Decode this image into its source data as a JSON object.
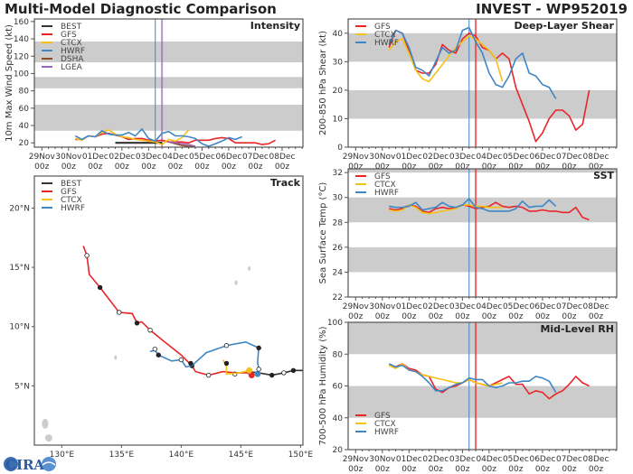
{
  "header": {
    "title_left": "Multi-Model Diagnostic Comparison",
    "title_right": "INVEST - WP952019"
  },
  "logo": {
    "text": "CIRA"
  },
  "colors": {
    "BEST": "#333333",
    "GFS": "#e8262a",
    "CTCX": "#f5c018",
    "HWRF": "#3f86c4",
    "DSHA": "#8c4a2a",
    "LGEA": "#a064b4",
    "band": "#cccccc"
  },
  "valid_times": [
    "30Nov 06z",
    "30Nov 12z",
    "30Nov 18z",
    "01Dec 00z",
    "01Dec 06z",
    "01Dec 12z",
    "01Dec 18z",
    "02Dec 00z",
    "02Dec 06z",
    "02Dec 12z",
    "02Dec 18z",
    "03Dec 00z",
    "03Dec 06z",
    "03Dec 12z",
    "03Dec 18z",
    "04Dec 00z",
    "04Dec 06z",
    "04Dec 12z",
    "04Dec 18z",
    "05Dec 00z",
    "05Dec 06z",
    "05Dec 12z",
    "05Dec 18z",
    "06Dec 00z",
    "06Dec 06z",
    "06Dec 12z",
    "06Dec 18z",
    "07Dec 00z",
    "07Dec 06z",
    "07Dec 12z",
    "07Dec 18z"
  ],
  "x_ticks": [
    [
      "29Nov",
      "00z"
    ],
    [
      "30Nov",
      "00z"
    ],
    [
      "01Dec",
      "00z"
    ],
    [
      "02Dec",
      "00z"
    ],
    [
      "03Dec",
      "00z"
    ],
    [
      "04Dec",
      "00z"
    ],
    [
      "05Dec",
      "00z"
    ],
    [
      "06Dec",
      "00z"
    ],
    [
      "07Dec",
      "00z"
    ],
    [
      "08Dec",
      "00z"
    ]
  ],
  "chart_data": [
    {
      "type": "line",
      "id": "intensity",
      "title": "Intensity",
      "ylabel": "10m Max Wind Speed (kt)",
      "ylim": [
        15,
        163
      ],
      "yticks": [
        20,
        40,
        60,
        80,
        100,
        120,
        140,
        160
      ],
      "grid": false,
      "bands": [
        [
          34,
          64
        ],
        [
          83,
          96
        ],
        [
          113,
          137
        ]
      ],
      "vlines": [
        {
          "time": "03Dec 06z",
          "color": "HWRF"
        },
        {
          "time": "03Dec 12z",
          "color": "LGEA"
        }
      ],
      "legend": [
        "BEST",
        "GFS",
        "CTCX",
        "HWRF",
        "DSHA",
        "LGEA"
      ],
      "legend_placement": "top-left",
      "series": [
        {
          "name": "BEST",
          "values": [
            null,
            null,
            null,
            null,
            null,
            null,
            20,
            20,
            20,
            20,
            20,
            20,
            20,
            20
          ]
        },
        {
          "name": "GFS",
          "values": [
            24,
            24,
            28,
            27,
            30,
            31,
            29,
            27,
            24,
            25,
            25,
            23,
            22,
            23,
            21,
            21,
            21,
            20,
            23,
            23,
            23,
            25,
            26,
            25,
            20,
            20,
            20,
            20,
            18,
            19,
            23
          ]
        },
        {
          "name": "CTCX",
          "values": [
            25,
            23,
            28,
            27,
            32,
            35,
            30,
            27,
            26,
            24,
            23,
            22,
            21,
            18,
            24,
            22,
            26,
            35
          ]
        },
        {
          "name": "HWRF",
          "values": [
            28,
            24,
            28,
            27,
            34,
            30,
            29,
            29,
            32,
            28,
            36,
            25,
            22,
            31,
            33,
            28,
            28,
            27,
            25,
            19,
            16,
            19,
            22,
            26,
            24,
            27
          ]
        },
        {
          "name": "DSHA",
          "values": [
            null,
            null,
            null,
            null,
            null,
            null,
            null,
            null,
            null,
            null,
            null,
            null,
            null,
            null,
            21,
            19,
            17,
            16,
            16
          ]
        },
        {
          "name": "LGEA",
          "values": [
            null,
            null,
            null,
            null,
            null,
            null,
            null,
            null,
            null,
            null,
            null,
            null,
            null,
            null,
            21,
            20,
            19,
            18,
            16
          ]
        }
      ]
    },
    {
      "type": "line",
      "id": "shear",
      "title": "Deep-Layer Shear",
      "ylabel": "200-850 hPa Shear (kt)",
      "ylim": [
        0,
        45
      ],
      "yticks": [
        0,
        10,
        20,
        30,
        40
      ],
      "grid": false,
      "bands": [
        [
          10,
          20
        ],
        [
          30,
          40
        ]
      ],
      "vlines": [
        {
          "time": "03Dec 06z",
          "color": "HWRF"
        },
        {
          "time": "03Dec 12z",
          "color": "GFS"
        }
      ],
      "legend": [
        "GFS",
        "CTCX",
        "HWRF"
      ],
      "legend_placement": "top-left",
      "series": [
        {
          "name": "GFS",
          "values": [
            35,
            41,
            40,
            34,
            27,
            26,
            26,
            29,
            36,
            34,
            33,
            38,
            40,
            39,
            35,
            34,
            31,
            33,
            31,
            21,
            15,
            9,
            2,
            5,
            10,
            13,
            13,
            11,
            6,
            8,
            20
          ]
        },
        {
          "name": "CTCX",
          "values": [
            34,
            37,
            38,
            33,
            27,
            24,
            23,
            26,
            29,
            32,
            35,
            37,
            39,
            38,
            36,
            34,
            31,
            23
          ]
        },
        {
          "name": "HWRF",
          "values": [
            36,
            41,
            40,
            35,
            28,
            27,
            25,
            30,
            35,
            33,
            34,
            41,
            42,
            37,
            33,
            26,
            22,
            21,
            25,
            31,
            33,
            26,
            25,
            22,
            21,
            17
          ]
        }
      ]
    },
    {
      "type": "line",
      "id": "sst",
      "title": "SST",
      "ylabel": "Sea Surface Temp (°C)",
      "ylim": [
        22,
        32.3
      ],
      "yticks": [
        22,
        24,
        26,
        28,
        30,
        32
      ],
      "grid": false,
      "bands": [
        [
          24,
          26
        ],
        [
          28,
          30
        ],
        [
          32,
          34
        ]
      ],
      "vlines": [
        {
          "time": "03Dec 06z",
          "color": "HWRF"
        },
        {
          "time": "03Dec 12z",
          "color": "GFS"
        }
      ],
      "legend": [
        "GFS",
        "CTCX",
        "HWRF"
      ],
      "legend_placement": "top-left",
      "series": [
        {
          "name": "GFS",
          "values": [
            29.1,
            29.0,
            29.1,
            29.4,
            29.3,
            28.9,
            28.8,
            29.1,
            29.2,
            29.1,
            29.2,
            29.4,
            29.3,
            29.1,
            29.2,
            29.3,
            29.6,
            29.3,
            29.2,
            29.3,
            29.2,
            28.9,
            28.9,
            29.0,
            28.9,
            28.9,
            28.8,
            28.8,
            29.2,
            28.4,
            28.2
          ]
        },
        {
          "name": "CTCX",
          "values": [
            29.0,
            28.9,
            29.0,
            29.4,
            29.2,
            28.8,
            28.7,
            28.8,
            28.9,
            29.0,
            29.1,
            29.4,
            29.4,
            29.3,
            29.3,
            29.2,
            29.2,
            29.2
          ]
        },
        {
          "name": "HWRF",
          "values": [
            29.3,
            29.2,
            29.2,
            29.3,
            29.6,
            29.0,
            29.1,
            29.2,
            29.6,
            29.3,
            29.2,
            29.4,
            29.9,
            29.2,
            29.1,
            28.9,
            28.9,
            28.9,
            28.9,
            29.1,
            29.7,
            29.2,
            29.3,
            29.3,
            29.8,
            29.3
          ]
        }
      ]
    },
    {
      "type": "line",
      "id": "rh",
      "title": "Mid-Level RH",
      "ylabel": "700-500 hPa Humidity (%)",
      "ylim": [
        20,
        100
      ],
      "yticks": [
        20,
        40,
        60,
        80,
        100
      ],
      "grid": false,
      "bands": [
        [
          40,
          60
        ],
        [
          80,
          100
        ]
      ],
      "vlines": [
        {
          "time": "03Dec 06z",
          "color": "HWRF"
        },
        {
          "time": "03Dec 12z",
          "color": "GFS"
        }
      ],
      "legend": [
        "GFS",
        "CTCX",
        "HWRF"
      ],
      "legend_placement": "bottom-left",
      "series": [
        {
          "name": "GFS",
          "values": [
            73,
            72,
            74,
            71,
            70,
            67,
            66,
            58,
            56,
            59,
            60,
            62,
            64,
            62,
            61,
            60,
            62,
            64,
            66,
            61,
            61,
            55,
            57,
            56,
            52,
            55,
            57,
            61,
            66,
            62,
            60
          ]
        },
        {
          "name": "CTCX",
          "values": [
            73,
            71,
            74,
            70,
            69,
            67,
            66,
            65,
            64,
            63,
            62,
            62,
            64,
            62,
            61,
            60,
            61,
            62
          ]
        },
        {
          "name": "HWRF",
          "values": [
            74,
            72,
            73,
            70,
            69,
            66,
            62,
            57,
            57,
            59,
            61,
            62,
            65,
            64,
            64,
            60,
            59,
            60,
            62,
            62,
            63,
            63,
            66,
            65,
            63,
            56
          ]
        }
      ]
    },
    {
      "type": "line",
      "id": "track",
      "title": "Track",
      "xlim": [
        127.7,
        150.2
      ],
      "ylim": [
        0,
        22.7
      ],
      "xticks": [
        [
          130,
          "130°E"
        ],
        [
          135,
          "135°E"
        ],
        [
          140,
          "140°E"
        ],
        [
          145,
          "145°E"
        ],
        [
          150,
          "150°E"
        ]
      ],
      "yticks": [
        [
          5,
          "5°N"
        ],
        [
          10,
          "10°N"
        ],
        [
          15,
          "15°N"
        ],
        [
          20,
          "20°N"
        ]
      ],
      "legend": [
        "BEST",
        "GFS",
        "CTCX",
        "HWRF"
      ],
      "legend_placement": "top-left",
      "series": [
        {
          "name": "BEST",
          "lonlat": [
            [
              150.3,
              6.3
            ],
            [
              149.4,
              6.3
            ],
            [
              148.6,
              6.1
            ],
            [
              147.6,
              5.9
            ],
            [
              146.5,
              6.1
            ],
            [
              145.5,
              6.2
            ]
          ],
          "markers": [
            [
              149.4,
              6.3,
              "filled"
            ],
            [
              148.6,
              6.1,
              "open"
            ],
            [
              147.6,
              5.9,
              "filled"
            ]
          ]
        },
        {
          "name": "GFS",
          "lonlat": [
            [
              145.9,
              5.9
            ],
            [
              145.5,
              6.1
            ],
            [
              144.5,
              6.1
            ],
            [
              143.5,
              6.2
            ],
            [
              142.3,
              5.9
            ],
            [
              141.2,
              6.2
            ],
            [
              140.9,
              6.7
            ],
            [
              140.0,
              7.6
            ],
            [
              138.5,
              8.8
            ],
            [
              137.4,
              9.7
            ],
            [
              136.7,
              10.4
            ],
            [
              136.3,
              10.3
            ],
            [
              135.9,
              11.1
            ],
            [
              134.8,
              11.2
            ],
            [
              133.2,
              13.3
            ],
            [
              132.3,
              14.4
            ],
            [
              132.1,
              16.0
            ],
            [
              131.8,
              16.8
            ]
          ],
          "markers": [
            [
              145.9,
              5.9,
              "start"
            ],
            [
              144.5,
              6.0,
              "open"
            ],
            [
              142.3,
              5.9,
              "open"
            ],
            [
              140.9,
              6.7,
              "filled"
            ],
            [
              137.4,
              9.7,
              "open"
            ],
            [
              136.3,
              10.3,
              "filled"
            ],
            [
              134.8,
              11.2,
              "open"
            ],
            [
              133.2,
              13.3,
              "filled"
            ],
            [
              132.1,
              16.0,
              "open"
            ]
          ]
        },
        {
          "name": "CTCX",
          "lonlat": [
            [
              145.7,
              6.3
            ],
            [
              144.9,
              6.1
            ],
            [
              143.8,
              6.0
            ],
            [
              143.8,
              6.6
            ],
            [
              143.5,
              7.2
            ]
          ],
          "markers": [
            [
              145.7,
              6.3,
              "start"
            ],
            [
              143.8,
              6.9,
              "filled"
            ]
          ]
        },
        {
          "name": "HWRF",
          "lonlat": [
            [
              146.4,
              6.0
            ],
            [
              146.5,
              6.4
            ],
            [
              146.4,
              7.0
            ],
            [
              146.5,
              8.2
            ],
            [
              145.4,
              8.7
            ],
            [
              143.8,
              8.4
            ],
            [
              142.1,
              7.8
            ],
            [
              140.9,
              6.7
            ],
            [
              140.4,
              6.6
            ],
            [
              140.0,
              7.2
            ],
            [
              139.2,
              7.1
            ],
            [
              138.1,
              7.6
            ],
            [
              137.8,
              8.0
            ],
            [
              137.4,
              7.9
            ]
          ],
          "markers": [
            [
              146.4,
              6.0,
              "start"
            ],
            [
              146.5,
              6.4,
              "open"
            ],
            [
              146.5,
              8.2,
              "filled"
            ],
            [
              143.8,
              8.4,
              "open"
            ],
            [
              140.8,
              6.9,
              "filled"
            ],
            [
              140.0,
              7.2,
              "open"
            ],
            [
              138.1,
              7.6,
              "filled"
            ],
            [
              137.8,
              8.1,
              "open"
            ]
          ]
        }
      ]
    }
  ]
}
